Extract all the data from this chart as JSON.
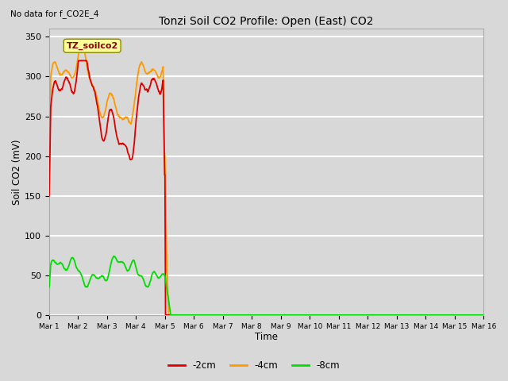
{
  "title": "Tonzi Soil CO2 Profile: Open (East) CO2",
  "subtitle": "No data for f_CO2E_4",
  "ylabel": "Soil CO2 (mV)",
  "xlabel": "Time",
  "legend_label": "TZ_soilco2",
  "ylim": [
    0,
    360
  ],
  "yticks": [
    0,
    50,
    100,
    150,
    200,
    250,
    300,
    350
  ],
  "series_labels": [
    "-2cm",
    "-4cm",
    "-8cm"
  ],
  "series_colors": [
    "#dd0000",
    "#ff9900",
    "#00dd00"
  ],
  "background_color": "#d8d8d8",
  "plot_bg_color": "#d8d8d8",
  "grid_color": "#ffffff",
  "tick_labels": [
    "Mar 1",
    "Mar 2",
    "Mar 3",
    "Mar 4",
    "Mar 5",
    "Mar 6",
    "Mar 7",
    "Mar 8",
    "Mar 9",
    "Mar 10",
    "Mar 11",
    "Mar 12",
    "Mar 13",
    "Mar 14",
    "Mar 15",
    "Mar 16"
  ],
  "figsize": [
    6.4,
    4.8
  ],
  "dpi": 100
}
